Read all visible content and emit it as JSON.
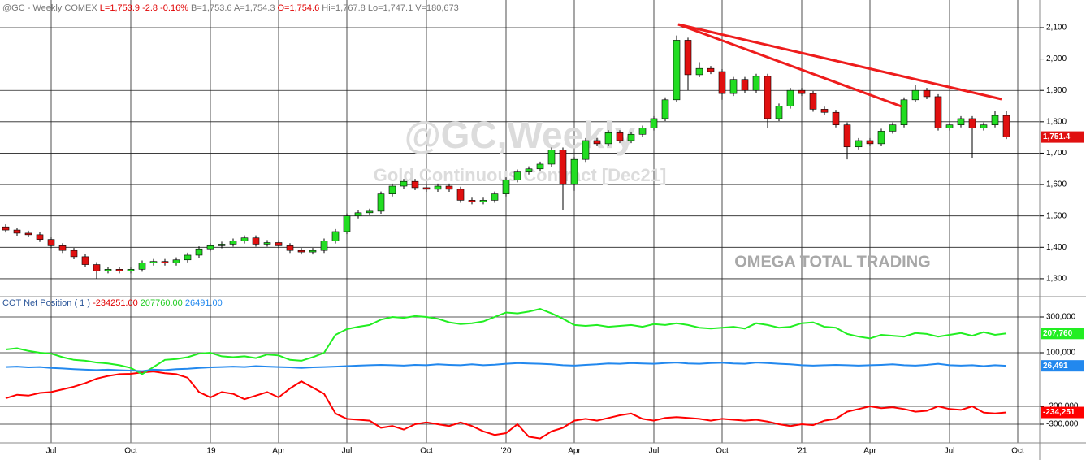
{
  "header": {
    "symbol": "@GC - Weekly",
    "exchange": "COMEX",
    "last": "L=1,753.9",
    "change": "-2.8",
    "pct": "-0.16%",
    "bid": "B=1,753.6",
    "ask": "A=1,754.3",
    "open": "O=1,754.6",
    "high": "Hi=1,767.8",
    "low": "Lo=1,747.1",
    "volume": "V=180,673"
  },
  "watermark": {
    "title": "@GC,Weekly",
    "subtitle": "Gold Continuous Contract [Dec21]",
    "brand": "OMEGA TOTAL TRADING"
  },
  "chart_data": [
    {
      "type": "candlestick",
      "up_color": "#22dd22",
      "down_color": "#e01010",
      "grid": true,
      "ylim": [
        1248,
        2188
      ],
      "yticks": [
        {
          "value": 1300,
          "label": "1,300"
        },
        {
          "value": 1400,
          "label": "1,400"
        },
        {
          "value": 1500,
          "label": "1,500"
        },
        {
          "value": 1600,
          "label": "1,600"
        },
        {
          "value": 1700,
          "label": "1,700"
        },
        {
          "value": 1800,
          "label": "1,800"
        },
        {
          "value": 1900,
          "label": "1,900"
        },
        {
          "value": 2000,
          "label": "2,000"
        },
        {
          "value": 2100,
          "label": "2,100"
        }
      ],
      "open": [
        1465,
        1455,
        1445,
        1440,
        1425,
        1405,
        1390,
        1370,
        1345,
        1325,
        1330,
        1325,
        1330,
        1350,
        1355,
        1350,
        1360,
        1375,
        1395,
        1405,
        1410,
        1420,
        1430,
        1410,
        1415,
        1405,
        1390,
        1385,
        1390,
        1420,
        1450,
        1500,
        1510,
        1515,
        1570,
        1595,
        1610,
        1590,
        1585,
        1595,
        1585,
        1550,
        1545,
        1550,
        1570,
        1615,
        1640,
        1650,
        1665,
        1710,
        1600,
        1680,
        1740,
        1730,
        1765,
        1740,
        1760,
        1780,
        1810,
        1870,
        2060,
        1950,
        1970,
        1960,
        1890,
        1935,
        1900,
        1945,
        1810,
        1850,
        1900,
        1890,
        1840,
        1830,
        1790,
        1720,
        1740,
        1730,
        1770,
        1790,
        1870,
        1900,
        1880,
        1780,
        1790,
        1810,
        1780,
        1790,
        1820,
        null
      ],
      "high": [
        1473,
        1463,
        1453,
        1448,
        1433,
        1413,
        1398,
        1378,
        1353,
        1338,
        1338,
        1338,
        1358,
        1363,
        1363,
        1368,
        1383,
        1403,
        1413,
        1418,
        1428,
        1438,
        1438,
        1423,
        1423,
        1413,
        1398,
        1398,
        1428,
        1458,
        1508,
        1518,
        1523,
        1578,
        1603,
        1618,
        1618,
        1598,
        1603,
        1603,
        1593,
        1558,
        1558,
        1578,
        1623,
        1648,
        1658,
        1673,
        1718,
        1718,
        1688,
        1748,
        1748,
        1773,
        1773,
        1768,
        1788,
        1818,
        1878,
        2075,
        2068,
        1990,
        1978,
        1968,
        1943,
        1943,
        1953,
        1953,
        1858,
        1908,
        1908,
        1898,
        1848,
        1838,
        1798,
        1748,
        1748,
        1778,
        1798,
        1878,
        1916,
        1908,
        1888,
        1798,
        1818,
        1818,
        1798,
        1834,
        1834,
        null
      ],
      "low": [
        1447,
        1437,
        1432,
        1417,
        1397,
        1382,
        1362,
        1337,
        1300,
        1317,
        1317,
        1317,
        1322,
        1342,
        1342,
        1342,
        1352,
        1367,
        1387,
        1397,
        1402,
        1412,
        1402,
        1402,
        1397,
        1382,
        1377,
        1377,
        1382,
        1412,
        1442,
        1492,
        1502,
        1507,
        1562,
        1587,
        1582,
        1577,
        1577,
        1577,
        1542,
        1537,
        1537,
        1542,
        1562,
        1607,
        1632,
        1642,
        1657,
        1520,
        1580,
        1672,
        1722,
        1722,
        1732,
        1732,
        1752,
        1772,
        1802,
        1862,
        1900,
        1942,
        1952,
        1870,
        1882,
        1892,
        1892,
        1780,
        1802,
        1842,
        1882,
        1832,
        1822,
        1782,
        1680,
        1712,
        1722,
        1722,
        1762,
        1782,
        1862,
        1872,
        1772,
        1772,
        1782,
        1685,
        1772,
        1782,
        1745,
        null
      ],
      "close": [
        1455,
        1445,
        1440,
        1425,
        1405,
        1390,
        1370,
        1345,
        1325,
        1330,
        1325,
        1330,
        1350,
        1355,
        1350,
        1360,
        1375,
        1395,
        1405,
        1410,
        1420,
        1430,
        1410,
        1415,
        1405,
        1390,
        1385,
        1390,
        1420,
        1450,
        1500,
        1510,
        1515,
        1570,
        1595,
        1610,
        1590,
        1585,
        1595,
        1585,
        1550,
        1545,
        1550,
        1570,
        1615,
        1640,
        1650,
        1665,
        1710,
        1600,
        1680,
        1740,
        1730,
        1765,
        1740,
        1760,
        1780,
        1810,
        1870,
        2060,
        1950,
        1970,
        1960,
        1890,
        1935,
        1900,
        1945,
        1810,
        1850,
        1900,
        1890,
        1840,
        1830,
        1790,
        1720,
        1740,
        1730,
        1770,
        1790,
        1870,
        1900,
        1880,
        1780,
        1790,
        1810,
        1780,
        1790,
        1820,
        1751.4,
        null
      ],
      "value_label": "1,751.4"
    },
    {
      "type": "line",
      "title": "COT Net Position ( 1 )",
      "grid": true,
      "categories": [
        null,
        null,
        null,
        null,
        "Jul",
        null,
        null,
        null,
        null,
        null,
        null,
        "Oct",
        null,
        null,
        null,
        null,
        null,
        null,
        "'19",
        null,
        null,
        null,
        null,
        null,
        "Apr",
        null,
        null,
        null,
        null,
        null,
        "Jul",
        null,
        null,
        null,
        null,
        null,
        null,
        "Oct",
        null,
        null,
        null,
        null,
        null,
        null,
        "'20",
        null,
        null,
        null,
        null,
        null,
        "Apr",
        null,
        null,
        null,
        null,
        null,
        null,
        "Jul",
        null,
        null,
        null,
        null,
        null,
        "Oct",
        null,
        null,
        null,
        null,
        null,
        null,
        "'21",
        null,
        null,
        null,
        null,
        null,
        "Apr",
        null,
        null,
        null,
        null,
        null,
        null,
        "Jul",
        null,
        null,
        null,
        null,
        null,
        "Oct"
      ],
      "ylim": [
        -400000,
        400000
      ],
      "yticks": [
        {
          "value": 300000,
          "label": "300,000"
        },
        {
          "value": 100000,
          "label": "100,000"
        },
        {
          "value": -200000,
          "label": "-200,000"
        },
        {
          "value": -300000,
          "label": "-300,000"
        }
      ],
      "series": [
        {
          "name": "-234251.00",
          "color": "#ff0000",
          "value_label": "-234,251",
          "values": [
            -155000,
            -135000,
            -140000,
            -125000,
            -120000,
            -105000,
            -90000,
            -70000,
            -45000,
            -30000,
            -20000,
            -18000,
            -10000,
            -5000,
            -15000,
            -20000,
            -40000,
            -120000,
            -150000,
            -120000,
            -130000,
            -160000,
            -140000,
            -120000,
            -150000,
            -100000,
            -60000,
            -95000,
            -130000,
            -240000,
            -270000,
            -275000,
            -280000,
            -320000,
            -310000,
            -330000,
            -300000,
            -290000,
            -300000,
            -310000,
            -290000,
            -310000,
            -340000,
            -360000,
            -350000,
            -300000,
            -370000,
            -380000,
            -340000,
            -320000,
            -280000,
            -270000,
            -280000,
            -265000,
            -250000,
            -240000,
            -270000,
            -280000,
            -265000,
            -260000,
            -265000,
            -270000,
            -280000,
            -270000,
            -275000,
            -280000,
            -275000,
            -285000,
            -300000,
            -310000,
            -300000,
            -305000,
            -280000,
            -270000,
            -230000,
            -215000,
            -200000,
            -210000,
            -205000,
            -215000,
            -230000,
            -225000,
            -200000,
            -215000,
            -220000,
            -200000,
            -235000,
            -240000,
            -234251,
            null
          ]
        },
        {
          "name": "207760.00",
          "color": "#22ee22",
          "value_label": "207,760",
          "values": [
            118000,
            125000,
            110000,
            100000,
            95000,
            75000,
            60000,
            55000,
            45000,
            40000,
            30000,
            15000,
            -20000,
            20000,
            60000,
            65000,
            75000,
            95000,
            100000,
            80000,
            75000,
            80000,
            70000,
            90000,
            85000,
            60000,
            55000,
            75000,
            100000,
            200000,
            232000,
            245000,
            255000,
            285000,
            300000,
            295000,
            305000,
            300000,
            290000,
            270000,
            260000,
            265000,
            275000,
            300000,
            325000,
            320000,
            330000,
            345000,
            320000,
            290000,
            255000,
            250000,
            255000,
            245000,
            250000,
            255000,
            245000,
            260000,
            255000,
            265000,
            255000,
            240000,
            235000,
            240000,
            245000,
            235000,
            265000,
            255000,
            240000,
            245000,
            265000,
            270000,
            245000,
            240000,
            205000,
            190000,
            180000,
            200000,
            195000,
            190000,
            210000,
            205000,
            190000,
            200000,
            210000,
            195000,
            215000,
            200000,
            207760,
            null
          ]
        },
        {
          "name": "26491.00",
          "color": "#2288ee",
          "value_label": "26,491",
          "values": [
            20000,
            22000,
            18000,
            20000,
            15000,
            12000,
            8000,
            5000,
            3000,
            5000,
            2000,
            0,
            -3000,
            5000,
            3000,
            8000,
            10000,
            15000,
            18000,
            20000,
            22000,
            20000,
            25000,
            22000,
            20000,
            18000,
            15000,
            18000,
            20000,
            22000,
            25000,
            28000,
            30000,
            32000,
            30000,
            28000,
            32000,
            30000,
            35000,
            32000,
            30000,
            35000,
            30000,
            33000,
            38000,
            42000,
            40000,
            38000,
            35000,
            30000,
            28000,
            32000,
            35000,
            40000,
            38000,
            42000,
            40000,
            38000,
            42000,
            45000,
            40000,
            38000,
            42000,
            44000,
            40000,
            38000,
            45000,
            42000,
            38000,
            35000,
            30000,
            28000,
            30000,
            32000,
            30000,
            28000,
            30000,
            32000,
            35000,
            30000,
            28000,
            32000,
            38000,
            30000,
            28000,
            30000,
            25000,
            30000,
            26491,
            null
          ]
        }
      ]
    }
  ]
}
